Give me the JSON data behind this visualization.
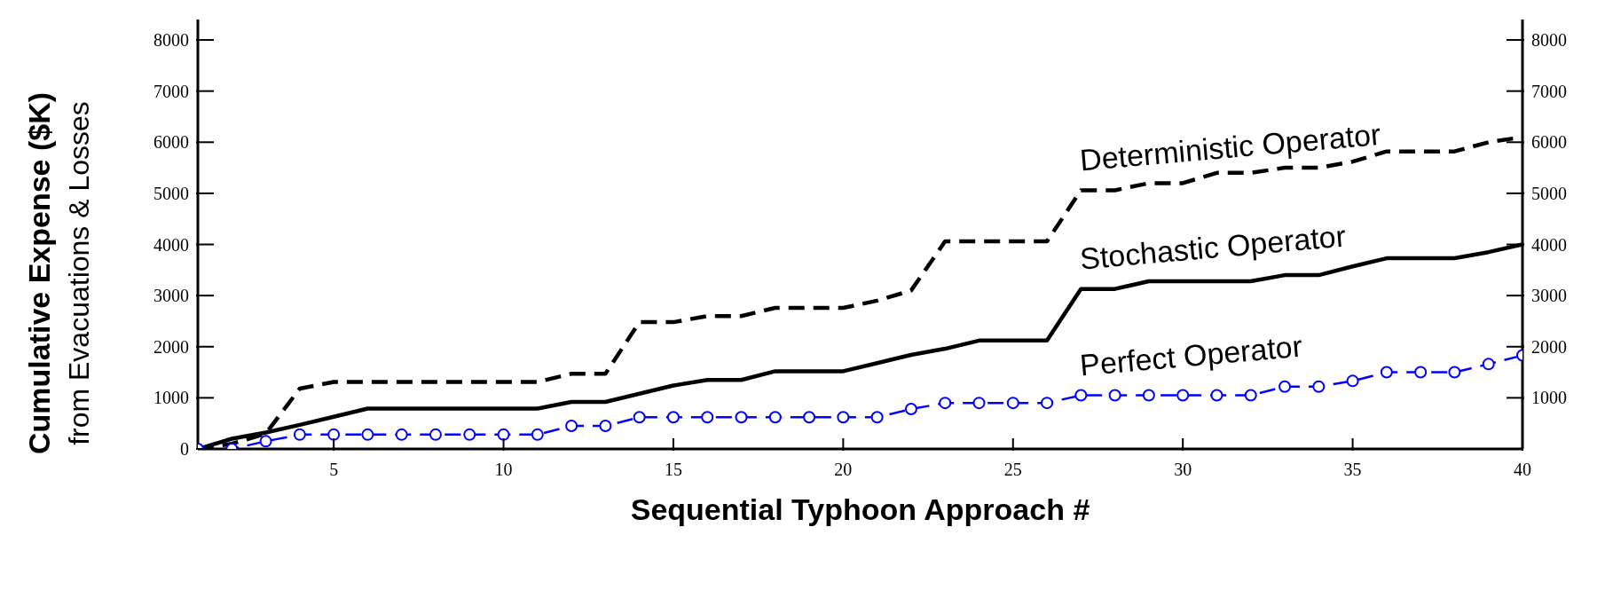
{
  "chart_data": {
    "type": "line",
    "xlabel": "Sequential Typhoon Approach #",
    "ylabel": "Cumulative Expense ($K)\nfrom Evacuations & Losses",
    "x": [
      1,
      2,
      3,
      4,
      5,
      6,
      7,
      8,
      9,
      10,
      11,
      12,
      13,
      14,
      15,
      16,
      17,
      18,
      19,
      20,
      21,
      22,
      23,
      24,
      25,
      26,
      27,
      28,
      29,
      30,
      31,
      32,
      33,
      34,
      35,
      36,
      37,
      38,
      39,
      40
    ],
    "series": [
      {
        "name": "Deterministic Operator",
        "color": "#000000",
        "line_style": "dashed",
        "marker": "none",
        "values": [
          0,
          100,
          300,
          1180,
          1310,
          1310,
          1310,
          1310,
          1310,
          1310,
          1310,
          1470,
          1470,
          2480,
          2480,
          2600,
          2600,
          2760,
          2760,
          2760,
          2900,
          3100,
          4060,
          4060,
          4060,
          4060,
          5060,
          5060,
          5200,
          5200,
          5400,
          5400,
          5500,
          5500,
          5620,
          5820,
          5820,
          5820,
          6000,
          6100
        ]
      },
      {
        "name": "Stochastic Operator",
        "color": "#000000",
        "line_style": "solid",
        "marker": "none",
        "values": [
          0,
          200,
          320,
          470,
          630,
          790,
          790,
          790,
          790,
          790,
          790,
          920,
          920,
          1080,
          1240,
          1350,
          1350,
          1520,
          1520,
          1520,
          1680,
          1840,
          1960,
          2120,
          2120,
          2120,
          3130,
          3130,
          3280,
          3280,
          3280,
          3280,
          3400,
          3400,
          3570,
          3730,
          3730,
          3730,
          3850,
          4000
        ]
      },
      {
        "name": "Perfect Operator",
        "color": "#0000ff",
        "line_style": "dashed",
        "marker": "circle",
        "values": [
          0,
          0,
          150,
          280,
          280,
          280,
          280,
          280,
          280,
          280,
          280,
          450,
          450,
          620,
          620,
          620,
          620,
          620,
          620,
          620,
          620,
          780,
          900,
          900,
          900,
          900,
          1050,
          1050,
          1050,
          1050,
          1050,
          1050,
          1220,
          1220,
          1330,
          1500,
          1500,
          1500,
          1660,
          1830
        ]
      }
    ],
    "xlim": [
      1,
      40
    ],
    "xticks": [
      5,
      10,
      15,
      20,
      25,
      30,
      35,
      40
    ],
    "ylim": [
      0,
      8400
    ],
    "yticks": [
      0,
      1000,
      2000,
      3000,
      4000,
      5000,
      6000,
      7000,
      8000
    ],
    "y2lim": [
      0,
      8400
    ],
    "y2ticks": [
      1000,
      2000,
      3000,
      4000,
      5000,
      6000,
      7000,
      8000
    ],
    "grid": false,
    "legend": false
  }
}
